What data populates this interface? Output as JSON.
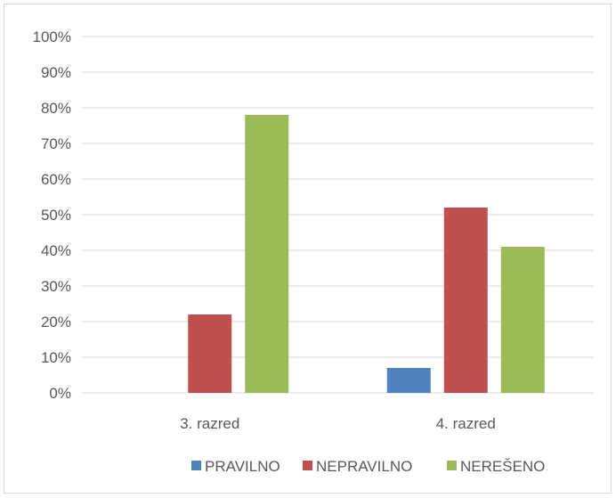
{
  "chart_data": {
    "type": "bar",
    "categories": [
      "3. razred",
      "4. razred"
    ],
    "series": [
      {
        "name": "PRAVILNO",
        "values": [
          0,
          7
        ],
        "color": "#4f81bd"
      },
      {
        "name": "NEPRAVILNO",
        "values": [
          22,
          52
        ],
        "color": "#c0504d"
      },
      {
        "name": "NEREŠENO",
        "values": [
          78,
          41
        ],
        "color": "#9bbb59"
      }
    ],
    "ylim": [
      0,
      100
    ],
    "yticks": [
      "0%",
      "10%",
      "20%",
      "30%",
      "40%",
      "50%",
      "60%",
      "70%",
      "80%",
      "90%",
      "100%"
    ],
    "grid": true,
    "legend_position": "bottom",
    "title": "",
    "xlabel": "",
    "ylabel": ""
  }
}
